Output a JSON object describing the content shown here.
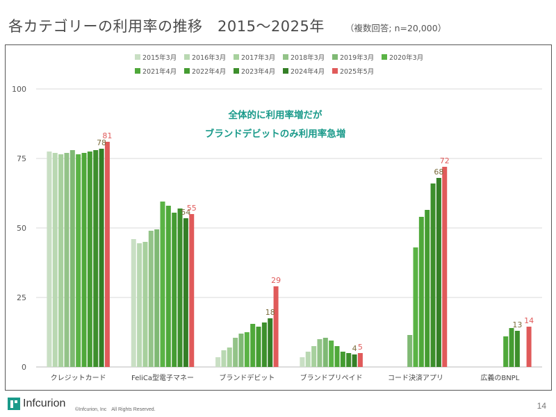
{
  "header": {
    "title": "各カテゴリーの利用率の推移　2015～2025年",
    "subtitle": "（複数回答; n=20,000）"
  },
  "footer": {
    "logo_text": "Infcurion",
    "copyright": "©Infcurion, Inc　All Rights Reserved.",
    "page_number": "14"
  },
  "chart_data": {
    "type": "bar",
    "categories": [
      "クレジットカード",
      "FeliCa型電子マネー",
      "ブランドデビット",
      "ブランドプリペイド",
      "コード決済アプリ",
      "広義のBNPL"
    ],
    "series": [
      {
        "name": "2015年3月",
        "color": "#c9dfc4",
        "values": [
          77.5,
          46,
          3.5,
          3.5,
          null,
          null
        ]
      },
      {
        "name": "2016年3月",
        "color": "#b9d8b2",
        "values": [
          77,
          44.5,
          6,
          5.5,
          null,
          null
        ]
      },
      {
        "name": "2017年3月",
        "color": "#a7d09d",
        "values": [
          76.5,
          45,
          7,
          7.5,
          null,
          null
        ]
      },
      {
        "name": "2018年3月",
        "color": "#93c388",
        "values": [
          77,
          49,
          10.5,
          10,
          null,
          null
        ]
      },
      {
        "name": "2019年3月",
        "color": "#7fb974",
        "values": [
          78,
          49.5,
          12,
          10.5,
          11.5,
          null
        ]
      },
      {
        "name": "2020年3月",
        "color": "#5ab345",
        "values": [
          76.5,
          59.5,
          12.5,
          9.5,
          43,
          null
        ]
      },
      {
        "name": "2021年4月",
        "color": "#4fa83a",
        "values": [
          77,
          58,
          15.5,
          7.5,
          54,
          11
        ]
      },
      {
        "name": "2022年4月",
        "color": "#459c32",
        "values": [
          77.5,
          55.5,
          14.5,
          5.5,
          56.5,
          14
        ]
      },
      {
        "name": "2023年4月",
        "color": "#3d8f2c",
        "values": [
          78,
          57,
          16,
          5,
          66,
          13
        ]
      },
      {
        "name": "2024年4月",
        "color": "#347f26",
        "values": [
          78.5,
          53.5,
          17.5,
          4.5,
          68,
          null
        ]
      },
      {
        "name": "2025年5月",
        "color": "#e05a5a",
        "values": [
          81,
          55,
          29,
          5,
          72,
          14.5
        ]
      }
    ],
    "data_labels": [
      {
        "category_index": 0,
        "series_index": 9,
        "text": "78",
        "color": "#7a6a3a"
      },
      {
        "category_index": 0,
        "series_index": 10,
        "text": "81",
        "color": "#e05a5a"
      },
      {
        "category_index": 1,
        "series_index": 9,
        "text": "54",
        "color": "#7a6a3a"
      },
      {
        "category_index": 1,
        "series_index": 10,
        "text": "55",
        "color": "#e05a5a"
      },
      {
        "category_index": 2,
        "series_index": 9,
        "text": "18",
        "color": "#7a6a3a"
      },
      {
        "category_index": 2,
        "series_index": 10,
        "text": "29",
        "color": "#e05a5a"
      },
      {
        "category_index": 3,
        "series_index": 9,
        "text": "4",
        "color": "#7a6a3a"
      },
      {
        "category_index": 3,
        "series_index": 10,
        "text": "5",
        "color": "#e05a5a"
      },
      {
        "category_index": 4,
        "series_index": 9,
        "text": "68",
        "color": "#7a6a3a"
      },
      {
        "category_index": 4,
        "series_index": 10,
        "text": "72",
        "color": "#e05a5a"
      },
      {
        "category_index": 5,
        "series_index": 8,
        "text": "13",
        "color": "#7a6a3a"
      },
      {
        "category_index": 5,
        "series_index": 10,
        "text": "14",
        "color": "#e05a5a"
      }
    ],
    "annotation": {
      "lines": [
        "全体的に利用率増だが",
        "ブランドデビットのみ利用率急増"
      ],
      "color": "#1a9a8a"
    },
    "ylim": [
      0,
      100
    ],
    "yticks": [
      0,
      25,
      50,
      75,
      100
    ],
    "grid": true,
    "legend_position": "top-center",
    "xlabel": "",
    "ylabel": ""
  }
}
